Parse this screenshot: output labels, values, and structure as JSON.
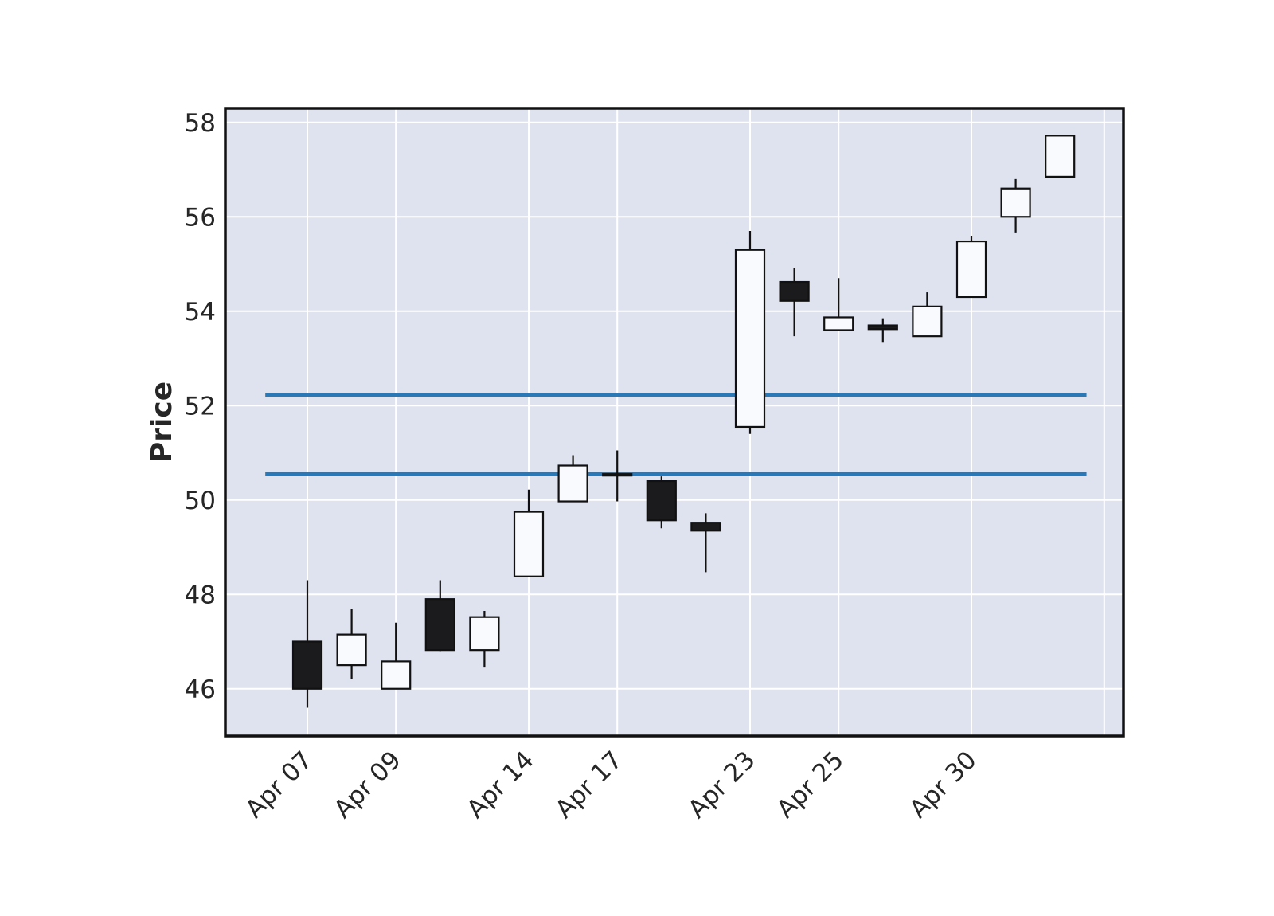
{
  "chart_data": {
    "type": "candlestick",
    "title": "",
    "xlabel": "",
    "ylabel": "Price",
    "ylim": [
      45.0,
      58.3
    ],
    "yticks": [
      46,
      48,
      50,
      52,
      54,
      56,
      58
    ],
    "grid": true,
    "x_tick_labels": [
      {
        "index": 0,
        "label": "Apr 07"
      },
      {
        "index": 2,
        "label": "Apr 09"
      },
      {
        "index": 5,
        "label": "Apr 14"
      },
      {
        "index": 7,
        "label": "Apr 17"
      },
      {
        "index": 10,
        "label": "Apr 23"
      },
      {
        "index": 12,
        "label": "Apr 25"
      },
      {
        "index": 15,
        "label": "Apr 30"
      }
    ],
    "candles": [
      {
        "open": 47.0,
        "high": 48.3,
        "low": 45.6,
        "close": 46.0
      },
      {
        "open": 46.5,
        "high": 47.7,
        "low": 46.2,
        "close": 47.15
      },
      {
        "open": 46.0,
        "high": 47.4,
        "low": 46.0,
        "close": 46.58
      },
      {
        "open": 47.9,
        "high": 48.3,
        "low": 46.8,
        "close": 46.82
      },
      {
        "open": 46.82,
        "high": 47.65,
        "low": 46.45,
        "close": 47.52
      },
      {
        "open": 48.38,
        "high": 50.22,
        "low": 48.38,
        "close": 49.75
      },
      {
        "open": 49.97,
        "high": 50.95,
        "low": 49.97,
        "close": 50.73
      },
      {
        "open": 50.55,
        "high": 51.05,
        "low": 49.97,
        "close": 50.55
      },
      {
        "open": 50.4,
        "high": 50.5,
        "low": 49.4,
        "close": 49.57
      },
      {
        "open": 49.52,
        "high": 49.72,
        "low": 48.47,
        "close": 49.35
      },
      {
        "open": 51.55,
        "high": 55.7,
        "low": 51.4,
        "close": 55.3
      },
      {
        "open": 54.62,
        "high": 54.92,
        "low": 53.47,
        "close": 54.22
      },
      {
        "open": 53.6,
        "high": 54.7,
        "low": 53.6,
        "close": 53.87
      },
      {
        "open": 53.7,
        "high": 53.85,
        "low": 53.35,
        "close": 53.62
      },
      {
        "open": 53.47,
        "high": 54.4,
        "low": 53.47,
        "close": 54.1
      },
      {
        "open": 54.3,
        "high": 55.6,
        "low": 54.3,
        "close": 55.48
      },
      {
        "open": 56.0,
        "high": 56.8,
        "low": 55.67,
        "close": 56.6
      },
      {
        "open": 56.85,
        "high": 57.72,
        "low": 56.85,
        "close": 57.72
      }
    ],
    "hlines": [
      52.23,
      50.55
    ],
    "colors": {
      "background": "#ffffff",
      "plot_background": "#dfe3ef",
      "grid": "#ffffff",
      "frame": "#111111",
      "up_fill": "#f8fafd",
      "down_fill": "#1b1b1d",
      "candle_edge": "#111111",
      "hline": "#2b78b6",
      "text": "#262626"
    }
  }
}
